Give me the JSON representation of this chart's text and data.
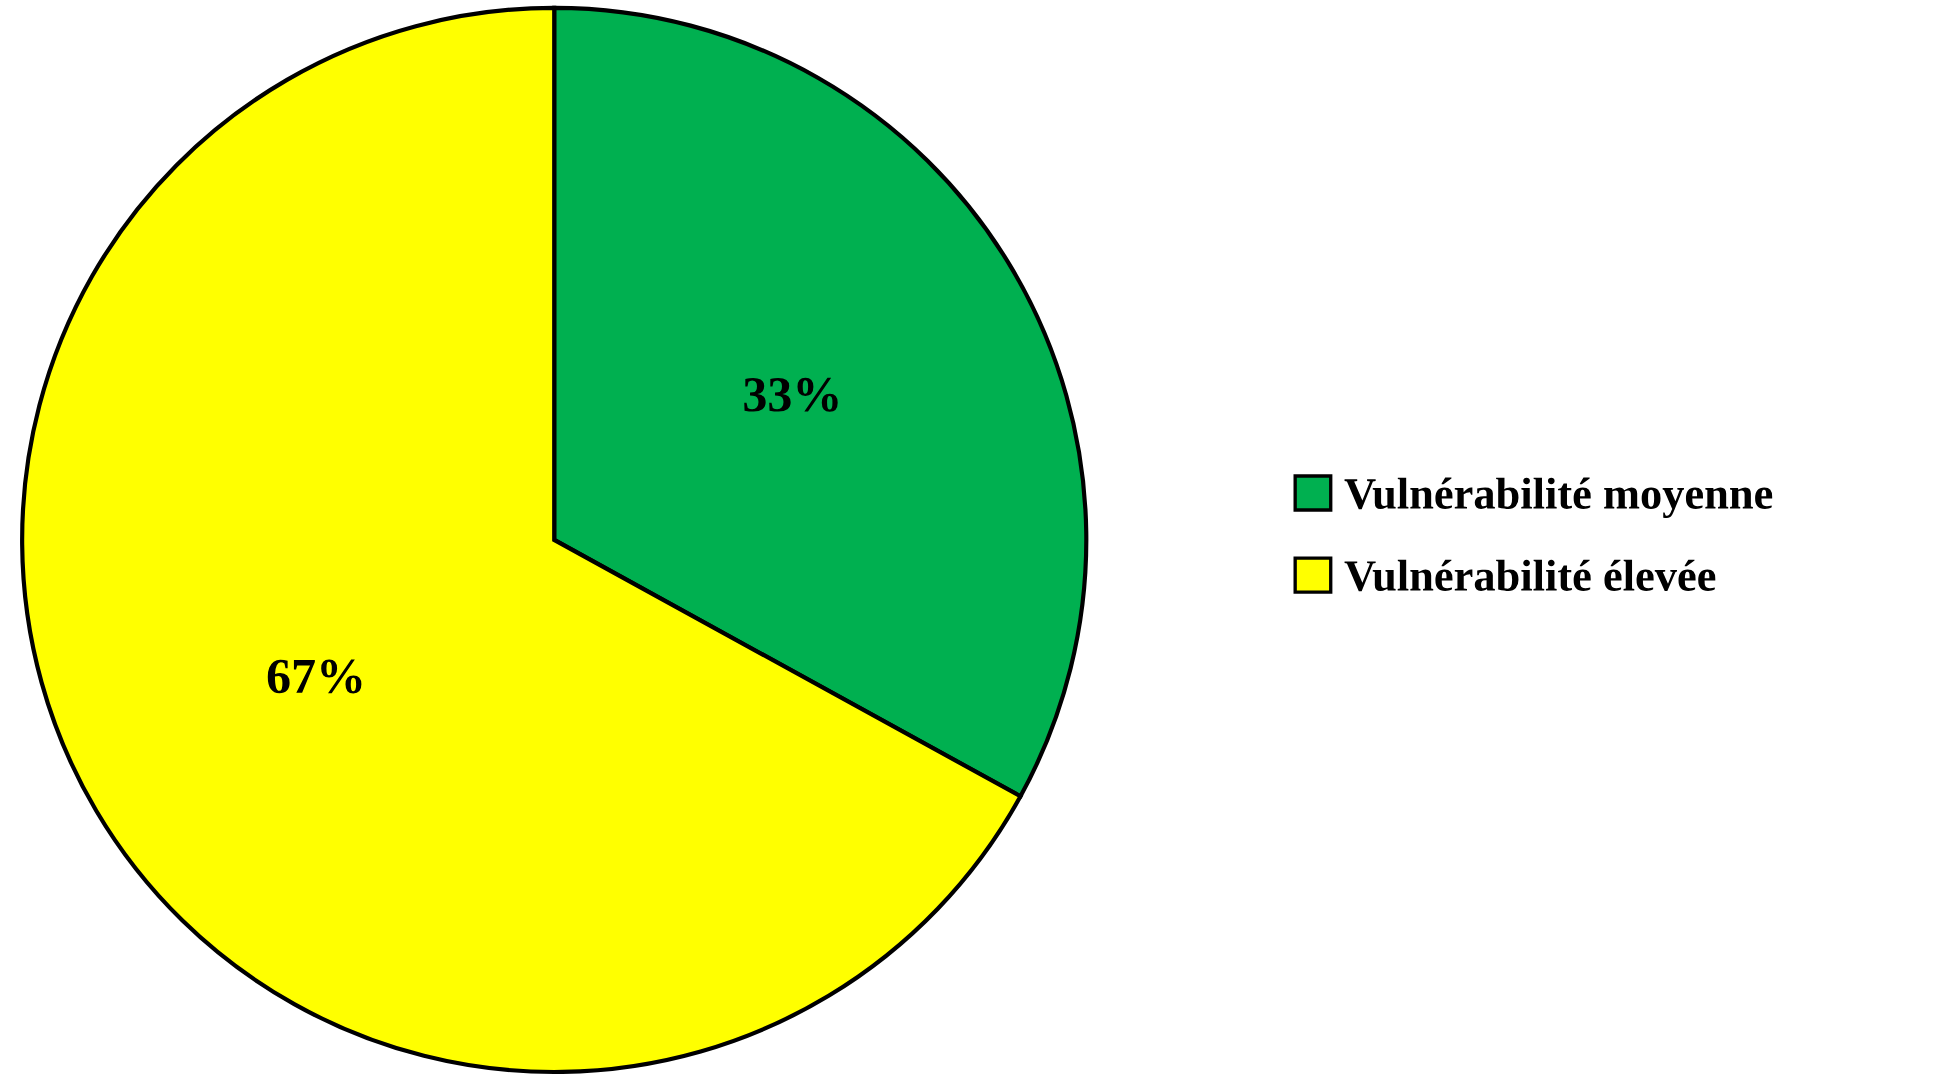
{
  "chart_data": {
    "type": "pie",
    "categories": [
      "Vulnérabilité moyenne",
      "Vulnérabilité élevée"
    ],
    "values": [
      33,
      67
    ],
    "colors": [
      "#00b050",
      "#ffff00"
    ],
    "value_labels": [
      "33%",
      "67%"
    ],
    "legend": "right"
  }
}
